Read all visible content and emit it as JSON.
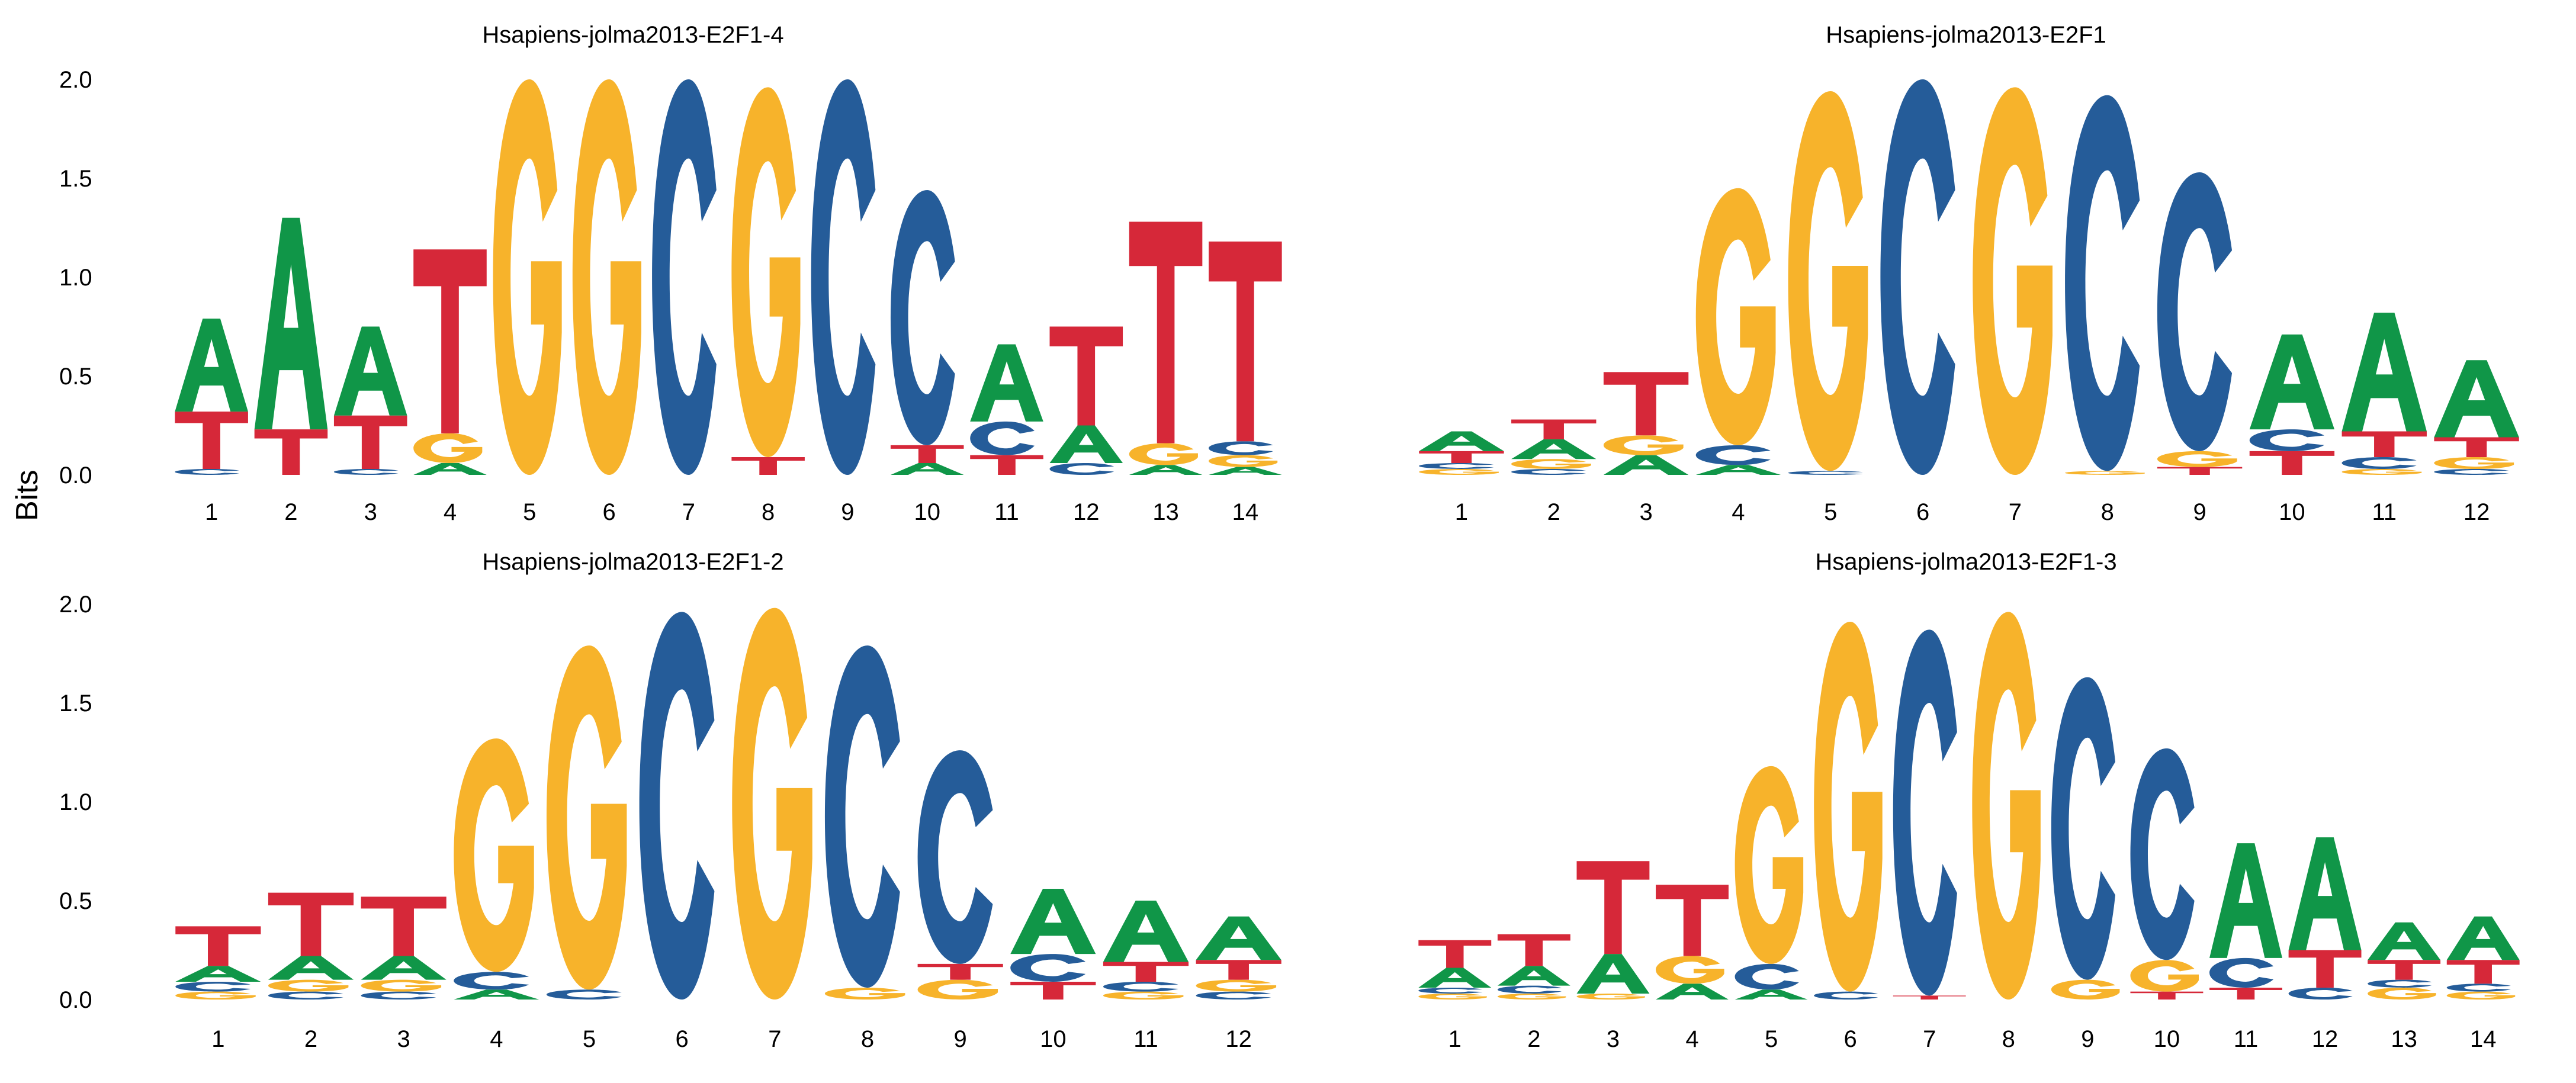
{
  "ylabel": "Bits",
  "colors": {
    "A": "#109648",
    "C": "#255C99",
    "G": "#F7B32B",
    "T": "#D62839"
  },
  "chart_data": [
    {
      "type": "sequence-logo",
      "title": "Hsapiens-jolma2013-E2F1-4",
      "ylabel": "Bits",
      "ylim": [
        0,
        2
      ],
      "yticks": [
        "0.0",
        "0.5",
        "1.0",
        "1.5",
        "2.0"
      ],
      "positions": [
        {
          "label": "1",
          "letters": [
            [
              "C",
              0.03
            ],
            [
              "T",
              0.29
            ],
            [
              "A",
              0.47
            ]
          ]
        },
        {
          "label": "2",
          "letters": [
            [
              "T",
              0.23
            ],
            [
              "A",
              1.07
            ]
          ]
        },
        {
          "label": "3",
          "letters": [
            [
              "C",
              0.03
            ],
            [
              "T",
              0.27
            ],
            [
              "A",
              0.45
            ]
          ]
        },
        {
          "label": "4",
          "letters": [
            [
              "A",
              0.06
            ],
            [
              "G",
              0.15
            ],
            [
              "T",
              0.93
            ]
          ]
        },
        {
          "label": "5",
          "letters": [
            [
              "G",
              2.0
            ]
          ]
        },
        {
          "label": "6",
          "letters": [
            [
              "G",
              2.0
            ]
          ]
        },
        {
          "label": "7",
          "letters": [
            [
              "C",
              2.0
            ]
          ]
        },
        {
          "label": "8",
          "letters": [
            [
              "T",
              0.09
            ],
            [
              "G",
              1.87
            ]
          ]
        },
        {
          "label": "9",
          "letters": [
            [
              "C",
              2.0
            ]
          ]
        },
        {
          "label": "10",
          "letters": [
            [
              "A",
              0.06
            ],
            [
              "T",
              0.09
            ],
            [
              "C",
              1.29
            ]
          ]
        },
        {
          "label": "11",
          "letters": [
            [
              "T",
              0.1
            ],
            [
              "C",
              0.17
            ],
            [
              "A",
              0.39
            ]
          ]
        },
        {
          "label": "12",
          "letters": [
            [
              "C",
              0.06
            ],
            [
              "A",
              0.19
            ],
            [
              "T",
              0.5
            ]
          ]
        },
        {
          "label": "13",
          "letters": [
            [
              "A",
              0.05
            ],
            [
              "G",
              0.11
            ],
            [
              "T",
              1.12
            ]
          ]
        },
        {
          "label": "14",
          "letters": [
            [
              "A",
              0.04
            ],
            [
              "G",
              0.06
            ],
            [
              "C",
              0.07
            ],
            [
              "T",
              1.01
            ]
          ]
        }
      ]
    },
    {
      "type": "sequence-logo",
      "title": "Hsapiens-jolma2013-E2F1",
      "ylabel": "",
      "ylim": [
        0,
        2
      ],
      "yticks": [],
      "positions": [
        {
          "label": "1",
          "letters": [
            [
              "G",
              0.03
            ],
            [
              "C",
              0.03
            ],
            [
              "T",
              0.06
            ],
            [
              "A",
              0.1
            ]
          ]
        },
        {
          "label": "2",
          "letters": [
            [
              "C",
              0.03
            ],
            [
              "G",
              0.05
            ],
            [
              "A",
              0.1
            ],
            [
              "T",
              0.1
            ]
          ]
        },
        {
          "label": "3",
          "letters": [
            [
              "A",
              0.1
            ],
            [
              "G",
              0.1
            ],
            [
              "T",
              0.32
            ]
          ]
        },
        {
          "label": "4",
          "letters": [
            [
              "A",
              0.05
            ],
            [
              "C",
              0.1
            ],
            [
              "G",
              1.3
            ]
          ]
        },
        {
          "label": "5",
          "letters": [
            [
              "C",
              0.02
            ],
            [
              "G",
              1.92
            ]
          ]
        },
        {
          "label": "6",
          "letters": [
            [
              "C",
              2.0
            ]
          ]
        },
        {
          "label": "7",
          "letters": [
            [
              "G",
              1.96
            ]
          ]
        },
        {
          "label": "8",
          "letters": [
            [
              "G",
              0.02
            ],
            [
              "C",
              1.9
            ]
          ]
        },
        {
          "label": "9",
          "letters": [
            [
              "T",
              0.04
            ],
            [
              "G",
              0.08
            ],
            [
              "C",
              1.41
            ]
          ]
        },
        {
          "label": "10",
          "letters": [
            [
              "T",
              0.12
            ],
            [
              "C",
              0.11
            ],
            [
              "A",
              0.48
            ]
          ]
        },
        {
          "label": "11",
          "letters": [
            [
              "G",
              0.03
            ],
            [
              "C",
              0.06
            ],
            [
              "T",
              0.13
            ],
            [
              "A",
              0.6
            ]
          ]
        },
        {
          "label": "12",
          "letters": [
            [
              "C",
              0.03
            ],
            [
              "G",
              0.06
            ],
            [
              "T",
              0.1
            ],
            [
              "A",
              0.39
            ]
          ]
        }
      ]
    },
    {
      "type": "sequence-logo",
      "title": "Hsapiens-jolma2013-E2F1-2",
      "ylabel": "",
      "ylim": [
        0,
        2
      ],
      "yticks": [
        "0.0",
        "0.5",
        "1.0",
        "1.5",
        "2.0"
      ],
      "positions": [
        {
          "label": "1",
          "letters": [
            [
              "G",
              0.04
            ],
            [
              "C",
              0.05
            ],
            [
              "A",
              0.08
            ],
            [
              "T",
              0.2
            ]
          ]
        },
        {
          "label": "2",
          "letters": [
            [
              "C",
              0.04
            ],
            [
              "G",
              0.06
            ],
            [
              "A",
              0.12
            ],
            [
              "T",
              0.32
            ]
          ]
        },
        {
          "label": "3",
          "letters": [
            [
              "C",
              0.04
            ],
            [
              "G",
              0.06
            ],
            [
              "A",
              0.12
            ],
            [
              "T",
              0.3
            ]
          ]
        },
        {
          "label": "4",
          "letters": [
            [
              "A",
              0.05
            ],
            [
              "C",
              0.09
            ],
            [
              "G",
              1.18
            ]
          ]
        },
        {
          "label": "5",
          "letters": [
            [
              "C",
              0.05
            ],
            [
              "G",
              1.74
            ]
          ]
        },
        {
          "label": "6",
          "letters": [
            [
              "C",
              1.96
            ]
          ]
        },
        {
          "label": "7",
          "letters": [
            [
              "G",
              1.98
            ]
          ]
        },
        {
          "label": "8",
          "letters": [
            [
              "G",
              0.06
            ],
            [
              "C",
              1.73
            ]
          ]
        },
        {
          "label": "9",
          "letters": [
            [
              "G",
              0.1
            ],
            [
              "T",
              0.08
            ],
            [
              "C",
              1.08
            ]
          ]
        },
        {
          "label": "10",
          "letters": [
            [
              "T",
              0.09
            ],
            [
              "C",
              0.14
            ],
            [
              "A",
              0.33
            ]
          ]
        },
        {
          "label": "11",
          "letters": [
            [
              "G",
              0.04
            ],
            [
              "C",
              0.05
            ],
            [
              "T",
              0.1
            ],
            [
              "A",
              0.31
            ]
          ]
        },
        {
          "label": "12",
          "letters": [
            [
              "C",
              0.04
            ],
            [
              "G",
              0.06
            ],
            [
              "T",
              0.1
            ],
            [
              "A",
              0.22
            ]
          ]
        }
      ]
    },
    {
      "type": "sequence-logo",
      "title": "Hsapiens-jolma2013-E2F1-3",
      "ylabel": "",
      "ylim": [
        0,
        2
      ],
      "yticks": [],
      "positions": [
        {
          "label": "1",
          "letters": [
            [
              "G",
              0.03
            ],
            [
              "C",
              0.03
            ],
            [
              "A",
              0.1
            ],
            [
              "T",
              0.14
            ]
          ]
        },
        {
          "label": "2",
          "letters": [
            [
              "G",
              0.03
            ],
            [
              "C",
              0.04
            ],
            [
              "A",
              0.1
            ],
            [
              "T",
              0.16
            ]
          ]
        },
        {
          "label": "3",
          "letters": [
            [
              "G",
              0.03
            ],
            [
              "A",
              0.2
            ],
            [
              "T",
              0.47
            ]
          ]
        },
        {
          "label": "4",
          "letters": [
            [
              "A",
              0.08
            ],
            [
              "G",
              0.14
            ],
            [
              "T",
              0.36
            ]
          ]
        },
        {
          "label": "5",
          "letters": [
            [
              "A",
              0.05
            ],
            [
              "C",
              0.13
            ],
            [
              "G",
              1.0
            ]
          ]
        },
        {
          "label": "6",
          "letters": [
            [
              "C",
              0.04
            ],
            [
              "G",
              1.87
            ]
          ]
        },
        {
          "label": "7",
          "letters": [
            [
              "T",
              0.02
            ],
            [
              "C",
              1.85
            ]
          ]
        },
        {
          "label": "8",
          "letters": [
            [
              "G",
              1.96
            ]
          ]
        },
        {
          "label": "9",
          "letters": [
            [
              "G",
              0.1
            ],
            [
              "C",
              1.53
            ]
          ]
        },
        {
          "label": "10",
          "letters": [
            [
              "T",
              0.04
            ],
            [
              "G",
              0.16
            ],
            [
              "C",
              1.07
            ]
          ]
        },
        {
          "label": "11",
          "letters": [
            [
              "T",
              0.06
            ],
            [
              "C",
              0.15
            ],
            [
              "A",
              0.58
            ]
          ]
        },
        {
          "label": "12",
          "letters": [
            [
              "C",
              0.06
            ],
            [
              "T",
              0.19
            ],
            [
              "A",
              0.57
            ]
          ]
        },
        {
          "label": "13",
          "letters": [
            [
              "G",
              0.06
            ],
            [
              "C",
              0.04
            ],
            [
              "T",
              0.1
            ],
            [
              "A",
              0.19
            ]
          ]
        },
        {
          "label": "14",
          "letters": [
            [
              "G",
              0.04
            ],
            [
              "C",
              0.04
            ],
            [
              "T",
              0.12
            ],
            [
              "A",
              0.22
            ]
          ]
        }
      ]
    }
  ]
}
